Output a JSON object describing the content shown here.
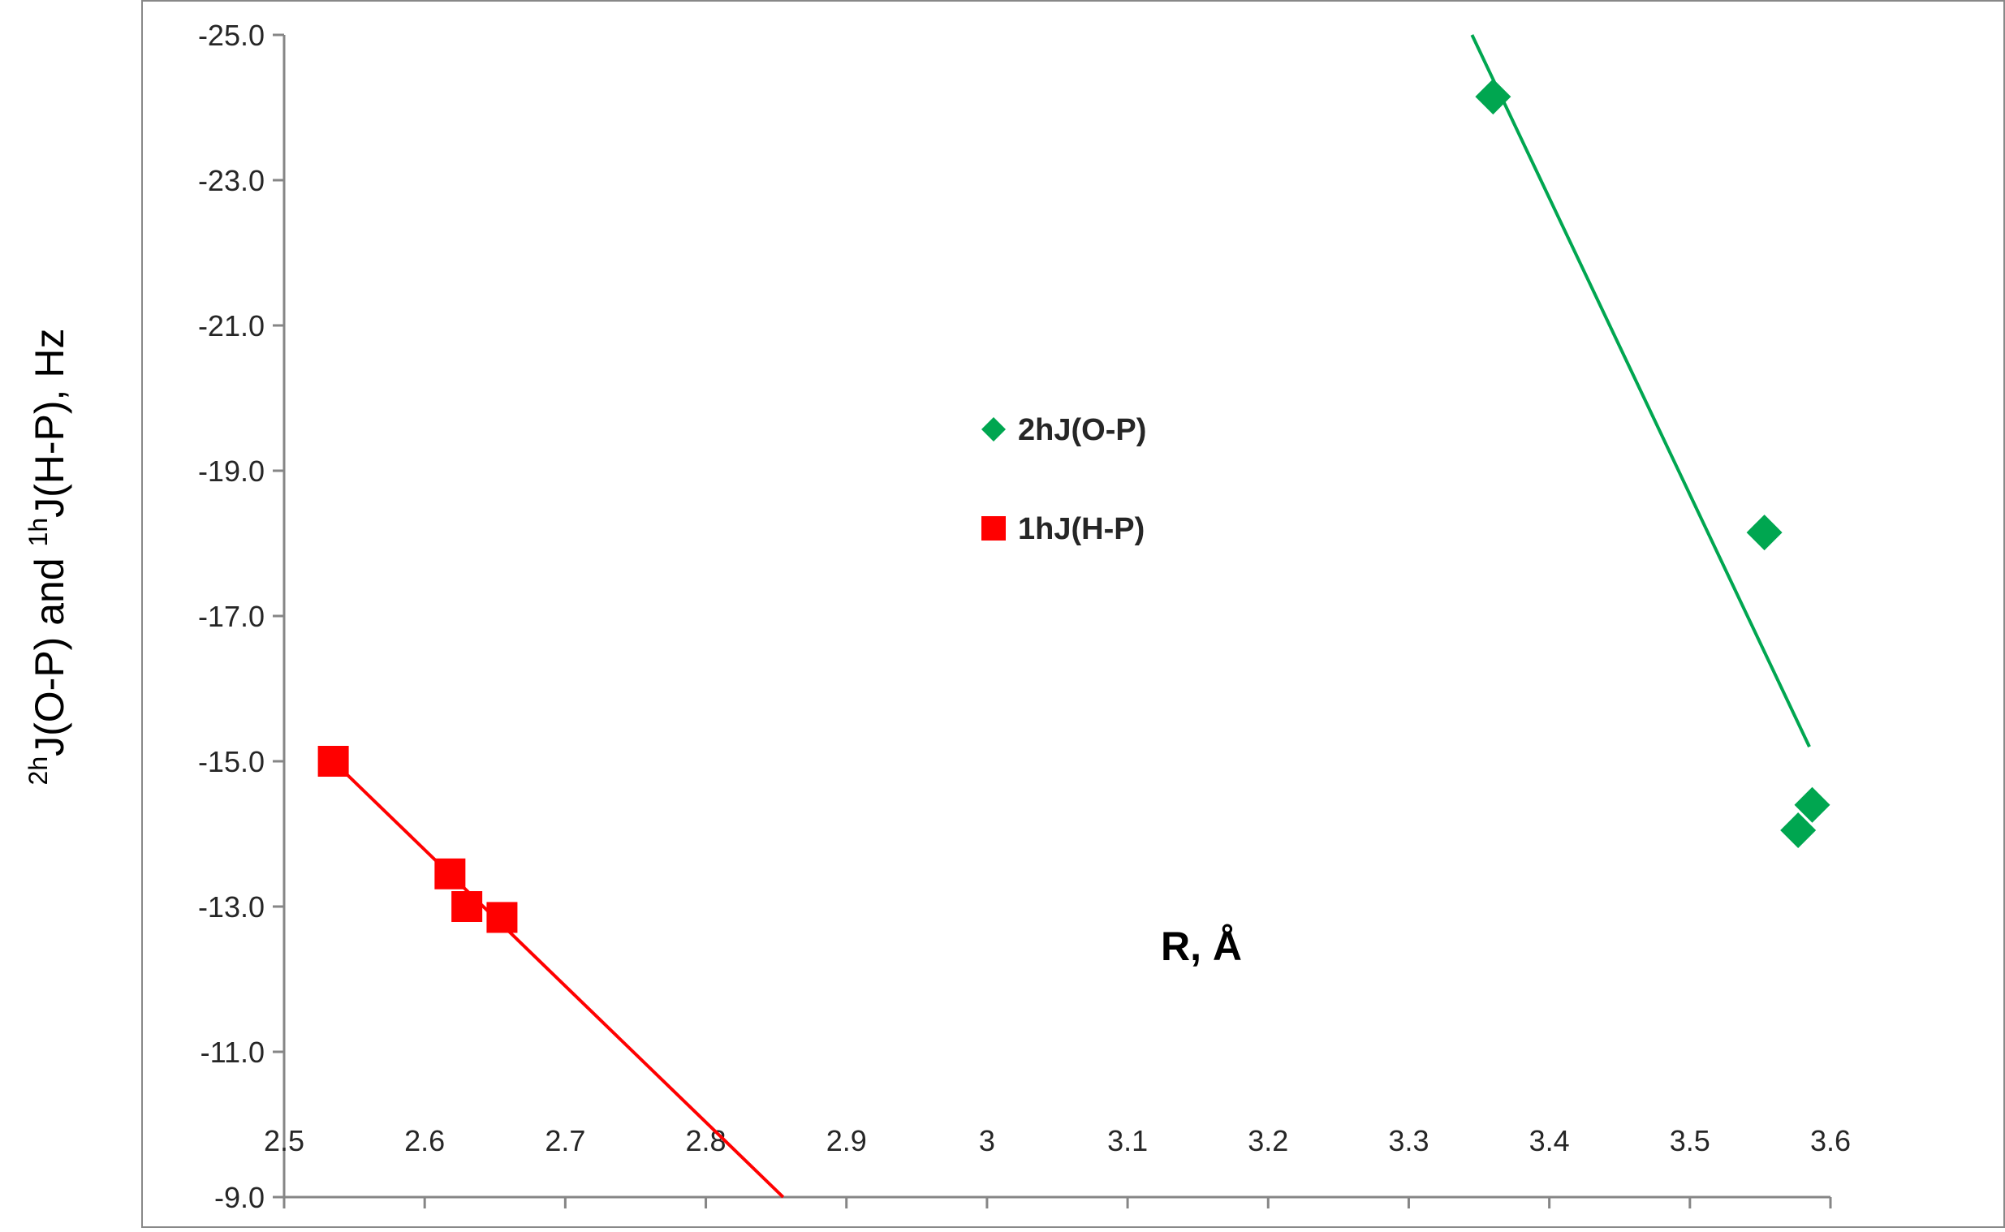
{
  "chart_data": {
    "type": "scatter",
    "xlabel": "R, Å",
    "ylabel": {
      "part1_sup": "2h",
      "part1": "J(O-P) and ",
      "part2_sup": "1h",
      "part2": "J(H-P), Hz"
    },
    "xlim": [
      2.5,
      3.6
    ],
    "ylim": [
      -25.0,
      -9.0
    ],
    "y_reversed": true,
    "x_ticks": [
      "2.5",
      "2.6",
      "2.7",
      "2.8",
      "2.9",
      "3",
      "3.1",
      "3.2",
      "3.3",
      "3.4",
      "3.5",
      "3.6"
    ],
    "y_ticks": [
      "-25.0",
      "-23.0",
      "-21.0",
      "-19.0",
      "-17.0",
      "-15.0",
      "-13.0",
      "-11.0",
      "-9.0"
    ],
    "grid": false,
    "legend_position": "center",
    "series": [
      {
        "name": "2hJ(O-P)",
        "marker": "diamond",
        "color": "#00A650",
        "points": [
          [
            3.36,
            -24.15
          ],
          [
            3.553,
            -18.15
          ],
          [
            3.587,
            -14.4
          ],
          [
            3.577,
            -14.05
          ]
        ],
        "trendline": [
          [
            3.345,
            -25.0
          ],
          [
            3.585,
            -15.2
          ]
        ]
      },
      {
        "name": "1hJ(H-P)",
        "marker": "square",
        "color": "#FF0000",
        "points": [
          [
            2.535,
            -15.0
          ],
          [
            2.618,
            -13.45
          ],
          [
            2.63,
            -13.0
          ],
          [
            2.655,
            -12.85
          ]
        ],
        "trendline": [
          [
            2.535,
            -15.0
          ],
          [
            2.855,
            -9.0
          ]
        ]
      }
    ]
  }
}
